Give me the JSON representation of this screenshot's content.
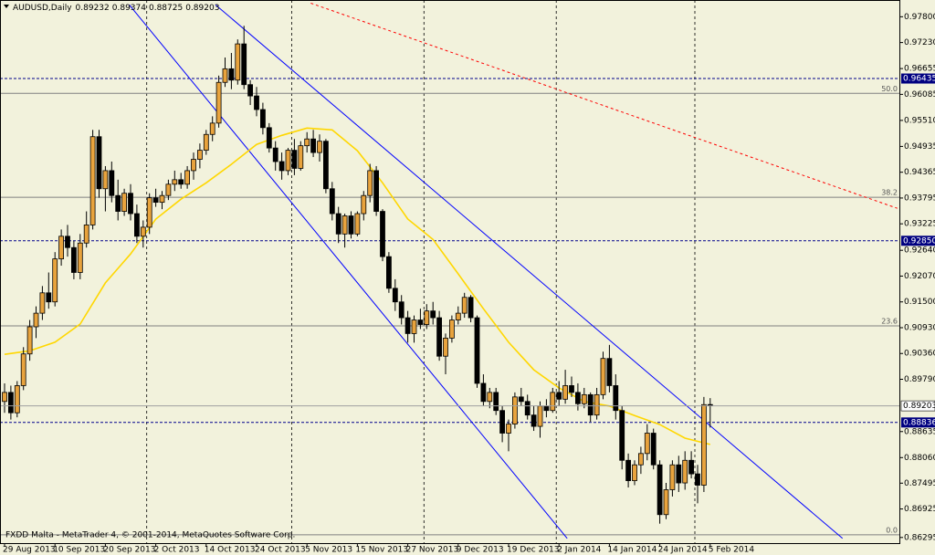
{
  "chart_data": {
    "type": "candlestick",
    "symbol": "AUDUSD,Daily",
    "footer": "FXDD Malta - MetaTrader 4, © 2001-2014, MetaQuotes Software Corp.",
    "categories": [
      "29 Aug 2013",
      null,
      null,
      null,
      null,
      null,
      null,
      null,
      "10 Sep 2013",
      null,
      null,
      null,
      null,
      null,
      null,
      null,
      "20 Sep 2013",
      null,
      null,
      null,
      null,
      null,
      null,
      null,
      "2 Oct 2013",
      null,
      null,
      null,
      null,
      null,
      null,
      null,
      "14 Oct 2013",
      null,
      null,
      null,
      null,
      null,
      null,
      null,
      "24 Oct 2013",
      null,
      null,
      null,
      null,
      null,
      null,
      null,
      "5 Nov 2013",
      null,
      null,
      null,
      null,
      null,
      null,
      null,
      "15 Nov 2013",
      null,
      null,
      null,
      null,
      null,
      null,
      null,
      "27 Nov 2013",
      null,
      null,
      null,
      null,
      null,
      null,
      null,
      "9 Dec 2013",
      null,
      null,
      null,
      null,
      null,
      null,
      null,
      "19 Dec 2013",
      null,
      null,
      null,
      null,
      null,
      null,
      null,
      "2 Jan 2014",
      null,
      null,
      null,
      null,
      null,
      null,
      null,
      "14 Jan 2014",
      null,
      null,
      null,
      null,
      null,
      null,
      null,
      "24 Jan 2014",
      null,
      null,
      null,
      null,
      null,
      null,
      null,
      "5 Feb 2014"
    ],
    "ohlc": {
      "up_color": "#e8a33d",
      "down_color": "#000000",
      "open": [
        0.893,
        0.895,
        0.8905,
        0.8965,
        0.9035,
        0.9095,
        0.9125,
        0.917,
        0.915,
        0.9245,
        0.9295,
        0.927,
        0.9215,
        0.928,
        0.932,
        0.9515,
        0.94,
        0.944,
        0.9385,
        0.935,
        0.939,
        0.9345,
        0.9295,
        0.9315,
        0.938,
        0.937,
        0.9385,
        0.941,
        0.942,
        0.941,
        0.944,
        0.9465,
        0.9485,
        0.952,
        0.9545,
        0.9635,
        0.9665,
        0.964,
        0.972,
        0.963,
        0.9605,
        0.9575,
        0.9535,
        0.949,
        0.946,
        0.944,
        0.9485,
        0.9445,
        0.9495,
        0.951,
        0.948,
        0.9505,
        0.94,
        0.9345,
        0.93,
        0.934,
        0.93,
        0.9345,
        0.9385,
        0.944,
        0.935,
        0.925,
        0.918,
        0.915,
        0.9115,
        0.908,
        0.911,
        0.91,
        0.913,
        0.9115,
        0.903,
        0.907,
        0.911,
        0.9125,
        0.916,
        0.9115,
        0.897,
        0.893,
        0.895,
        0.891,
        0.886,
        0.888,
        0.894,
        0.893,
        0.89,
        0.8875,
        0.892,
        0.891,
        0.895,
        0.8935,
        0.8965,
        0.895,
        0.8925,
        0.8945,
        0.89,
        0.8945,
        0.9025,
        0.8965,
        0.891,
        0.88,
        0.8755,
        0.879,
        0.8815,
        0.886,
        0.879,
        0.868,
        0.8735,
        0.879,
        0.875,
        0.88,
        0.877,
        0.8745,
        0.89232
      ],
      "high": [
        0.897,
        0.8965,
        0.8975,
        0.905,
        0.911,
        0.914,
        0.9185,
        0.9215,
        0.926,
        0.931,
        0.932,
        0.9285,
        0.93,
        0.935,
        0.953,
        0.953,
        0.945,
        0.946,
        0.942,
        0.94,
        0.941,
        0.9365,
        0.933,
        0.939,
        0.94,
        0.9395,
        0.942,
        0.944,
        0.9435,
        0.945,
        0.948,
        0.95,
        0.953,
        0.956,
        0.965,
        0.969,
        0.97,
        0.973,
        0.976,
        0.964,
        0.9625,
        0.959,
        0.9545,
        0.9505,
        0.948,
        0.949,
        0.951,
        0.9505,
        0.9525,
        0.953,
        0.952,
        0.951,
        0.9415,
        0.936,
        0.9345,
        0.935,
        0.935,
        0.9395,
        0.9455,
        0.945,
        0.9355,
        0.926,
        0.92,
        0.9165,
        0.913,
        0.912,
        0.9135,
        0.9145,
        0.915,
        0.913,
        0.908,
        0.912,
        0.914,
        0.917,
        0.9165,
        0.912,
        0.899,
        0.896,
        0.896,
        0.892,
        0.889,
        0.895,
        0.896,
        0.8945,
        0.892,
        0.893,
        0.8935,
        0.896,
        0.8975,
        0.9,
        0.8985,
        0.897,
        0.896,
        0.895,
        0.896,
        0.904,
        0.9055,
        0.899,
        0.892,
        0.8815,
        0.88,
        0.883,
        0.888,
        0.887,
        0.88,
        0.875,
        0.88,
        0.881,
        0.882,
        0.882,
        0.879,
        0.894,
        0.89374
      ],
      "low": [
        0.8905,
        0.889,
        0.8895,
        0.8955,
        0.902,
        0.907,
        0.911,
        0.9135,
        0.914,
        0.923,
        0.925,
        0.92,
        0.92,
        0.927,
        0.931,
        0.938,
        0.935,
        0.937,
        0.933,
        0.934,
        0.933,
        0.928,
        0.927,
        0.93,
        0.936,
        0.9355,
        0.9375,
        0.9395,
        0.94,
        0.94,
        0.942,
        0.9445,
        0.9475,
        0.9505,
        0.9535,
        0.9625,
        0.962,
        0.963,
        0.962,
        0.9585,
        0.956,
        0.952,
        0.948,
        0.944,
        0.942,
        0.943,
        0.943,
        0.944,
        0.948,
        0.947,
        0.946,
        0.939,
        0.933,
        0.928,
        0.927,
        0.929,
        0.9295,
        0.933,
        0.937,
        0.934,
        0.924,
        0.917,
        0.913,
        0.91,
        0.906,
        0.906,
        0.909,
        0.909,
        0.91,
        0.902,
        0.899,
        0.906,
        0.91,
        0.9115,
        0.9105,
        0.896,
        0.892,
        0.8915,
        0.89,
        0.884,
        0.882,
        0.887,
        0.892,
        0.889,
        0.8865,
        0.885,
        0.8895,
        0.8905,
        0.892,
        0.8925,
        0.894,
        0.891,
        0.8915,
        0.8885,
        0.889,
        0.8935,
        0.895,
        0.889,
        0.878,
        0.874,
        0.8745,
        0.877,
        0.88,
        0.878,
        0.866,
        0.867,
        0.872,
        0.873,
        0.8735,
        0.876,
        0.8705,
        0.873,
        0.88725
      ],
      "close": [
        0.895,
        0.8905,
        0.8965,
        0.9035,
        0.9095,
        0.9125,
        0.917,
        0.915,
        0.9245,
        0.9295,
        0.927,
        0.9215,
        0.928,
        0.932,
        0.9515,
        0.94,
        0.944,
        0.9385,
        0.935,
        0.939,
        0.9345,
        0.9295,
        0.9315,
        0.938,
        0.937,
        0.9385,
        0.941,
        0.942,
        0.941,
        0.944,
        0.9465,
        0.9485,
        0.952,
        0.9545,
        0.9635,
        0.9665,
        0.964,
        0.972,
        0.963,
        0.9605,
        0.9575,
        0.9535,
        0.949,
        0.946,
        0.944,
        0.9485,
        0.9445,
        0.9495,
        0.951,
        0.948,
        0.9505,
        0.94,
        0.9345,
        0.93,
        0.934,
        0.93,
        0.9345,
        0.9385,
        0.944,
        0.935,
        0.925,
        0.918,
        0.915,
        0.9115,
        0.908,
        0.911,
        0.91,
        0.913,
        0.9115,
        0.903,
        0.907,
        0.911,
        0.9125,
        0.916,
        0.9115,
        0.897,
        0.893,
        0.895,
        0.891,
        0.886,
        0.888,
        0.894,
        0.893,
        0.89,
        0.8875,
        0.892,
        0.891,
        0.895,
        0.8935,
        0.8965,
        0.895,
        0.8925,
        0.8945,
        0.89,
        0.8945,
        0.9025,
        0.8965,
        0.891,
        0.88,
        0.8755,
        0.879,
        0.8815,
        0.886,
        0.879,
        0.868,
        0.8735,
        0.879,
        0.875,
        0.88,
        0.877,
        0.8745,
        0.8923,
        0.89203
      ]
    },
    "moving_average": {
      "color": "#ffd700",
      "x": [
        0,
        4,
        8,
        12,
        16,
        20,
        24,
        28,
        32,
        36,
        40,
        44,
        48,
        52,
        56,
        60,
        64,
        68,
        72,
        76,
        80,
        84,
        88,
        92,
        96,
        100,
        104,
        108,
        112
      ],
      "values": [
        0.9034,
        0.9042,
        0.9061,
        0.9101,
        0.9192,
        0.9256,
        0.9333,
        0.9377,
        0.9413,
        0.9454,
        0.9498,
        0.9518,
        0.9534,
        0.953,
        0.9484,
        0.9413,
        0.9333,
        0.9288,
        0.9212,
        0.9135,
        0.9061,
        0.9,
        0.896,
        0.893,
        0.892,
        0.8899,
        0.8879,
        0.8849,
        0.8835
      ]
    },
    "trendlines": [
      {
        "x": [
          33.5,
          133
        ],
        "y": [
          0.98062,
          0.86275
        ],
        "color": "#0000ff",
        "dashed": false
      },
      {
        "x": [
          19.8,
          89.3
        ],
        "y": [
          0.98062,
          0.86275
        ],
        "color": "#0000ff",
        "dashed": false
      },
      {
        "x": [
          48.6,
          141.7
        ],
        "y": [
          0.981,
          0.93568
        ],
        "color": "#ff0000",
        "dashed": true
      }
    ],
    "fib_levels": [
      {
        "value": 0.96107,
        "label": "50.0"
      },
      {
        "value": 0.9381,
        "label": "38.2"
      },
      {
        "value": 0.9097,
        "label": "23.6"
      },
      {
        "value": 0.86355,
        "label": "0.0"
      }
    ],
    "hlines": [
      0.96435,
      {
        "value": 0.9285,
        "label": "0.92850"
      },
      0.88836
    ],
    "bid": 0.89203,
    "ylim": [
      0.8617,
      0.9817
    ],
    "yticks": [
      {
        "value": 0.978,
        "label": "0.97800"
      },
      {
        "value": 0.9723,
        "label": "0.97230"
      },
      0.96655,
      0.96085,
      {
        "value": 0.9551,
        "label": "0.95510"
      },
      0.94935,
      0.94365,
      0.93795,
      0.93225,
      {
        "value": 0.9264,
        "label": "0.92640"
      },
      {
        "value": 0.9207,
        "label": "0.92070"
      },
      {
        "value": 0.915,
        "label": "0.91500"
      },
      {
        "value": 0.9093,
        "label": "0.90930"
      },
      {
        "value": 0.9036,
        "label": "0.90360"
      },
      {
        "value": 0.8979,
        "label": "0.89790"
      },
      0.88635,
      {
        "value": 0.8806,
        "label": "0.88060"
      },
      0.87495,
      0.86925,
      0.86295
    ]
  }
}
